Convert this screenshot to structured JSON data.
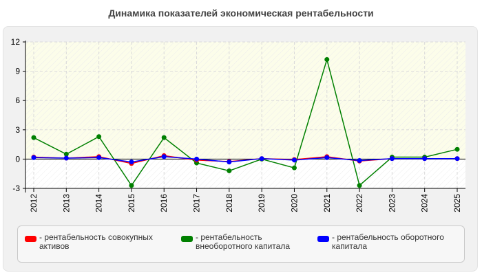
{
  "title": "Динамика показателей экономическая рентабельности",
  "chart_data": {
    "type": "line",
    "categories": [
      "2012",
      "2013",
      "2014",
      "2015",
      "2016",
      "2017",
      "2018",
      "2019",
      "2020",
      "2021",
      "2022",
      "2023",
      "2024",
      "2025"
    ],
    "ylim": [
      -3,
      12
    ],
    "yticks": [
      -3,
      0,
      3,
      6,
      9,
      12
    ],
    "grid": true,
    "legend_position": "bottom",
    "series": [
      {
        "name": "- рентабельность совокупных активов",
        "color": "#ff0000",
        "values": [
          0.2,
          0.1,
          0.25,
          -0.45,
          0.35,
          -0.1,
          -0.25,
          0.05,
          -0.05,
          0.25,
          -0.2,
          0.05,
          0.05,
          0.05
        ]
      },
      {
        "name": "- рентабельность внеоборотного капитала",
        "color": "#008000",
        "values": [
          2.2,
          0.5,
          2.3,
          -2.7,
          2.2,
          -0.4,
          -1.2,
          0.0,
          -0.9,
          10.2,
          -2.7,
          0.2,
          0.2,
          1.0
        ]
      },
      {
        "name": "- рентабельность оборотного капитала",
        "color": "#0000ff",
        "values": [
          0.15,
          0.1,
          0.15,
          -0.3,
          0.25,
          0.0,
          -0.3,
          0.05,
          -0.1,
          0.15,
          -0.15,
          0.05,
          0.05,
          0.05
        ]
      }
    ]
  }
}
